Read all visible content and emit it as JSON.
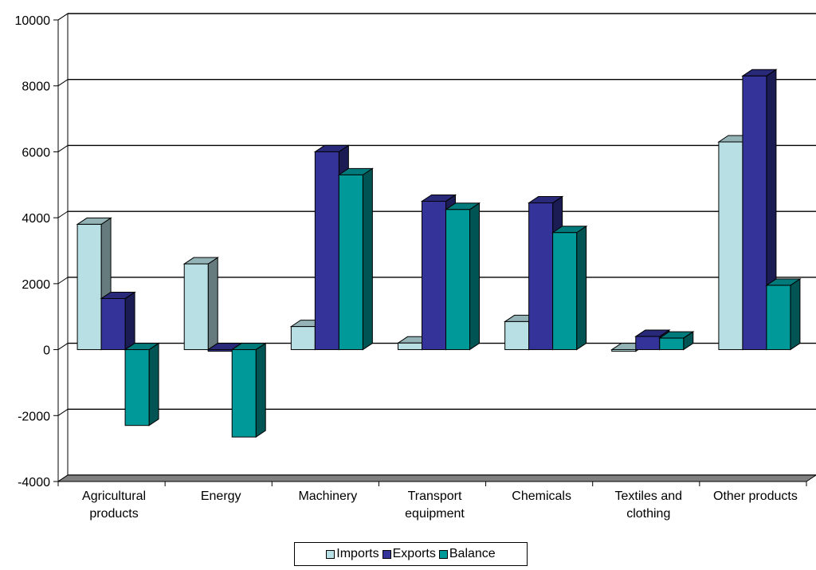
{
  "chart_data": {
    "type": "bar",
    "categories": [
      [
        "Agricultural",
        "products"
      ],
      [
        "Energy"
      ],
      [
        "Machinery"
      ],
      [
        "Transport",
        "equipment"
      ],
      [
        "Chemicals"
      ],
      [
        "Textiles and",
        "clothing"
      ],
      [
        "Other products"
      ]
    ],
    "series": [
      {
        "name": "Imports",
        "values": [
          3800,
          2600,
          700,
          200,
          850,
          -50,
          6300
        ],
        "color": "#b8e0e4"
      },
      {
        "name": "Exports",
        "values": [
          1550,
          -50,
          6000,
          4500,
          4450,
          400,
          8300
        ],
        "color": "#333399"
      },
      {
        "name": "Balance",
        "values": [
          -2300,
          -2650,
          5300,
          4250,
          3550,
          350,
          1950
        ],
        "color": "#009999"
      }
    ],
    "ylim": [
      -4000,
      10000
    ],
    "yticks": [
      -4000,
      -2000,
      0,
      2000,
      4000,
      6000,
      8000,
      10000
    ],
    "ytick_labels": [
      "-4000",
      "-2000",
      "0",
      "2000",
      "4000",
      "6000",
      "8000",
      "10000"
    ],
    "grid": true,
    "three_d": true,
    "legend_position": "bottom"
  }
}
